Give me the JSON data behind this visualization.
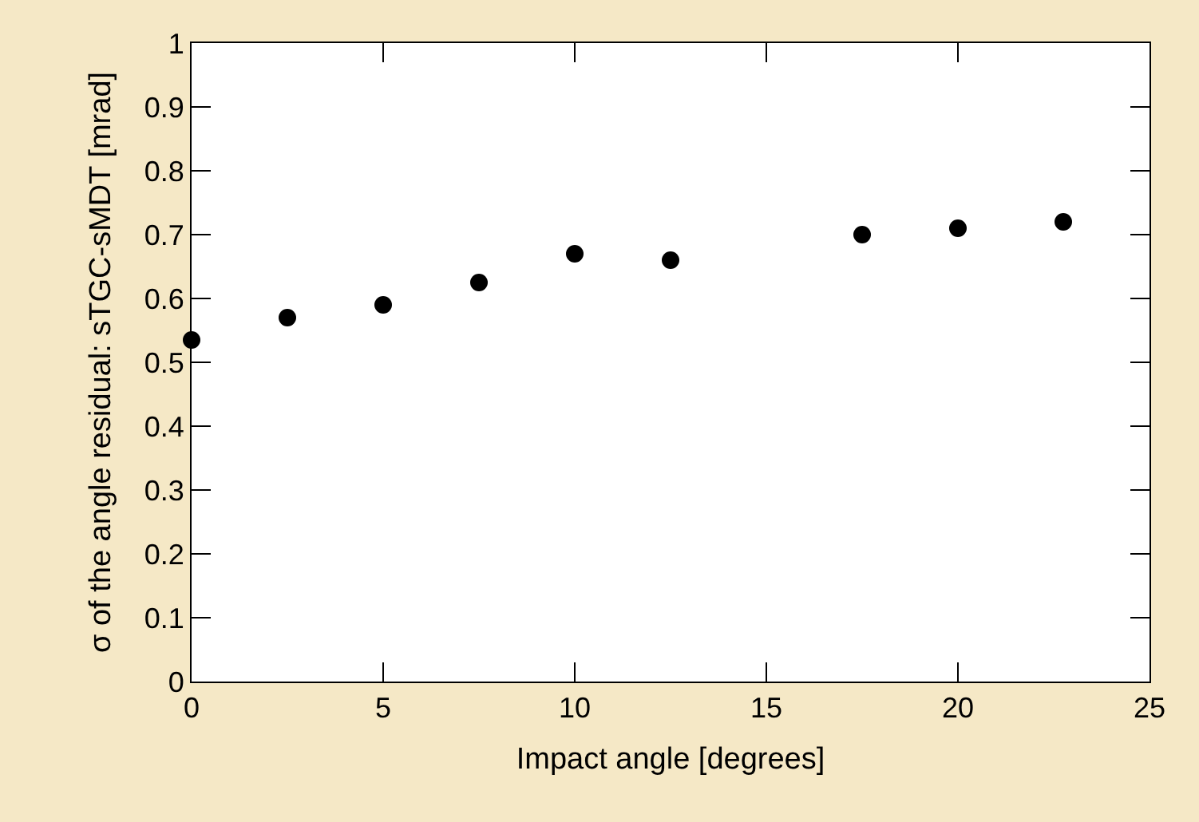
{
  "chart_data": {
    "type": "scatter",
    "xlabel": "Impact angle [degrees]",
    "ylabel": "σ of the angle residual: sTGC-sMDT [mrad]",
    "x": [
      0,
      2.5,
      5,
      7.5,
      10,
      12.5,
      17.5,
      20,
      22.75
    ],
    "series": [
      {
        "color": "#000000",
        "values": [
          0.535,
          0.57,
          0.59,
          0.625,
          0.67,
          0.66,
          0.7,
          0.71,
          0.72
        ]
      }
    ],
    "xlim": [
      0,
      25
    ],
    "xticks": [
      0,
      5,
      10,
      15,
      20,
      25
    ],
    "ylim": [
      0,
      1
    ],
    "yticks": [
      0,
      0.1,
      0.2,
      0.3,
      0.4,
      0.5,
      0.6,
      0.7,
      0.8,
      0.9,
      1
    ],
    "marker": "circle",
    "legend": false
  }
}
